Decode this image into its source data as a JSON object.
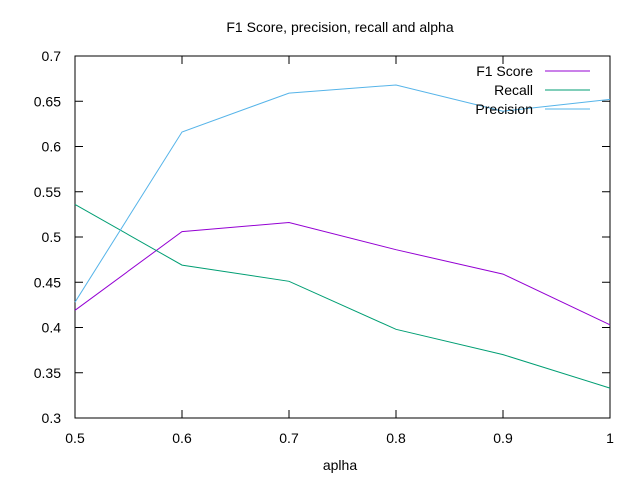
{
  "chart_data": {
    "type": "line",
    "title": "F1 Score, precision, recall and alpha",
    "xlabel": "aplha",
    "ylabel": "",
    "xlim": [
      0.5,
      1
    ],
    "ylim": [
      0.3,
      0.7
    ],
    "x_ticks": [
      "0.5",
      "0.6",
      "0.7",
      "0.8",
      "0.9",
      "1"
    ],
    "y_ticks": [
      "0.3",
      "0.35",
      "0.4",
      "0.45",
      "0.5",
      "0.55",
      "0.6",
      "0.65",
      "0.7"
    ],
    "x": [
      0.5,
      0.6,
      0.7,
      0.8,
      0.9,
      1.0
    ],
    "grid": false,
    "legend_position": "top-right",
    "series": [
      {
        "name": "F1 Score",
        "color": "#9400d3",
        "values": [
          0.419,
          0.506,
          0.516,
          0.486,
          0.459,
          0.403
        ]
      },
      {
        "name": "Recall",
        "color": "#009e73",
        "values": [
          0.536,
          0.469,
          0.451,
          0.398,
          0.37,
          0.333
        ]
      },
      {
        "name": "Precision",
        "color": "#56b4e9",
        "values": [
          0.428,
          0.616,
          0.659,
          0.668,
          0.639,
          0.652
        ]
      }
    ]
  }
}
